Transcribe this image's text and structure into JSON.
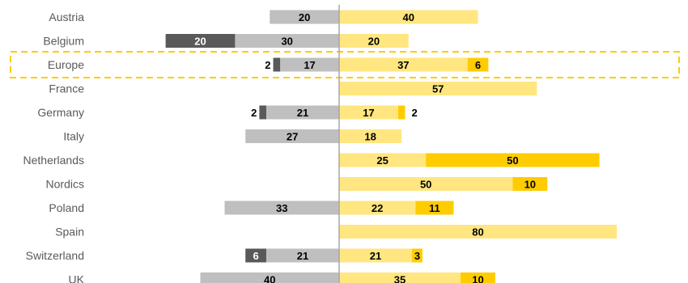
{
  "chart_data": {
    "type": "bar",
    "orientation": "diverging-horizontal",
    "categories": [
      "Austria",
      "Belgium",
      "Europe",
      "France",
      "Germany",
      "Italy",
      "Netherlands",
      "Nordics",
      "Poland",
      "Spain",
      "Switzerland",
      "UK"
    ],
    "highlighted_category": "Europe",
    "series": [
      {
        "side": "negative",
        "values": [
          0,
          20,
          2,
          0,
          2,
          0,
          0,
          0,
          0,
          0,
          6,
          0
        ],
        "color": "#595959",
        "label_color": "#ffffff"
      },
      {
        "side": "negative",
        "values": [
          20,
          30,
          17,
          0,
          21,
          27,
          0,
          0,
          33,
          0,
          21,
          40
        ],
        "color": "#bfbfbf",
        "label_color": "#000000"
      },
      {
        "side": "positive",
        "values": [
          40,
          20,
          37,
          57,
          17,
          18,
          25,
          50,
          22,
          80,
          21,
          35
        ],
        "color": "#ffe680",
        "label_color": "#000000"
      },
      {
        "side": "positive",
        "values": [
          0,
          0,
          6,
          0,
          2,
          0,
          50,
          10,
          11,
          0,
          3,
          10
        ],
        "color": "#ffcc00",
        "label_color": "#000000"
      }
    ],
    "colors": {
      "axis": "#a6a6a6",
      "highlight_border": "#ffcc00",
      "category_text": "#595959"
    }
  }
}
